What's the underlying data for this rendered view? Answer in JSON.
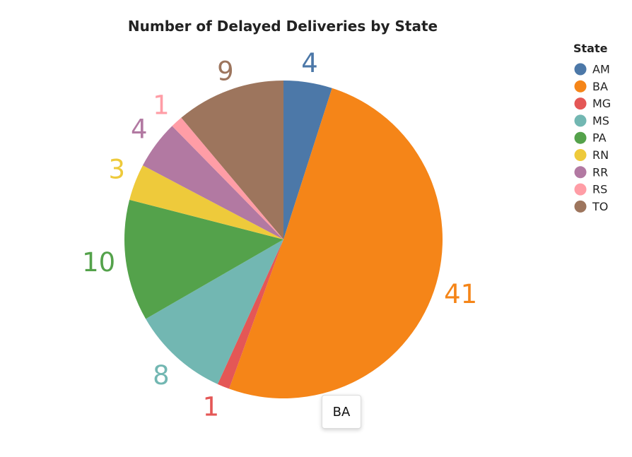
{
  "chart_data": {
    "type": "pie",
    "title": "Number of Delayed Deliveries by State",
    "legend_title": "State",
    "legend_position": "top-right",
    "categories": [
      "AM",
      "BA",
      "MG",
      "MS",
      "PA",
      "RN",
      "RR",
      "RS",
      "TO"
    ],
    "values": [
      4,
      41,
      1,
      8,
      10,
      3,
      4,
      1,
      9
    ],
    "colors": [
      "#4c78a8",
      "#f58518",
      "#e45756",
      "#72b7b2",
      "#54a24b",
      "#eeca3b",
      "#b279a2",
      "#ff9da6",
      "#9d755d"
    ]
  },
  "tooltip": {
    "text": "BA"
  }
}
